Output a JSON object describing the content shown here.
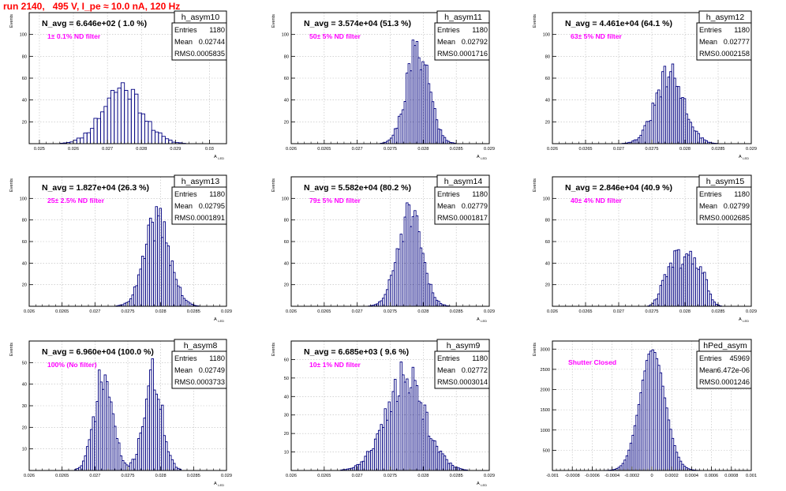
{
  "page": {
    "title": "run 2140,   495 V, I_pe ≈ 10.0 nA, 120 Hz"
  },
  "colors": {
    "hist": "#000080",
    "filter_text": "#ff00ff",
    "title": "#ff0000",
    "grid": "#bbbbbb"
  },
  "chart_data": [
    {
      "type": "histogram",
      "name": "h_asym10",
      "ylabel": "Events",
      "xlabel": "A_LED",
      "navg": "N_avg = 6.646e+02 ( 1.0 %)",
      "filter": "1± 0.1% ND filter",
      "stats": {
        "entries": "1180",
        "mean": "0.02744",
        "rms": "0.0005835"
      },
      "xlim": [
        0.0247,
        0.0305
      ],
      "ylim": [
        0,
        120
      ],
      "xticks": [
        "0.025",
        "0.026",
        "0.027",
        "0.028",
        "0.029",
        "0.03"
      ],
      "xtick_values": [
        0.025,
        0.026,
        0.027,
        0.028,
        0.029,
        0.03
      ],
      "yticks": [
        "20",
        "40",
        "60",
        "80",
        "100"
      ],
      "ytick_values": [
        20,
        40,
        60,
        80,
        100
      ],
      "profile": {
        "type": "gauss",
        "mean": 0.02744,
        "sigma": 0.00058,
        "peak": 52,
        "bin": 0.0001,
        "seed": 11
      }
    },
    {
      "type": "histogram",
      "name": "h_asym11",
      "ylabel": "Events",
      "xlabel": "A_LED",
      "navg": "N_avg = 3.574e+04 (51.3 %)",
      "filter": "50± 5% ND filter",
      "stats": {
        "entries": "1180",
        "mean": "0.02792",
        "rms": "0.0001716"
      },
      "xlim": [
        0.026,
        0.029
      ],
      "ylim": [
        0,
        120
      ],
      "xticks": [
        "0.026",
        "0.0265",
        "0.027",
        "0.0275",
        "0.028",
        "0.0285",
        "0.029"
      ],
      "xtick_values": [
        0.026,
        0.0265,
        0.027,
        0.0275,
        0.028,
        0.0285,
        0.029
      ],
      "yticks": [
        "20",
        "40",
        "60",
        "80",
        "100"
      ],
      "ytick_values": [
        20,
        40,
        60,
        80,
        100
      ],
      "profile": {
        "type": "gauss",
        "mean": 0.02792,
        "sigma": 0.000172,
        "peak": 88,
        "bin": 3e-05,
        "seed": 21
      }
    },
    {
      "type": "histogram",
      "name": "h_asym12",
      "ylabel": "Events",
      "xlabel": "A_LED",
      "navg": "N_avg = 4.461e+04 (64.1 %)",
      "filter": "63± 5% ND filter",
      "stats": {
        "entries": "1180",
        "mean": "0.02777",
        "rms": "0.0002158"
      },
      "xlim": [
        0.026,
        0.029
      ],
      "ylim": [
        0,
        120
      ],
      "xticks": [
        "0.026",
        "0.0265",
        "0.027",
        "0.0275",
        "0.028",
        "0.0285",
        "0.029"
      ],
      "xtick_values": [
        0.026,
        0.0265,
        0.027,
        0.0275,
        0.028,
        0.0285,
        0.029
      ],
      "yticks": [
        "20",
        "40",
        "60",
        "80",
        "100"
      ],
      "ytick_values": [
        20,
        40,
        60,
        80,
        100
      ],
      "profile": {
        "type": "gauss",
        "mean": 0.02777,
        "sigma": 0.000216,
        "peak": 62,
        "bin": 3e-05,
        "seed": 31
      }
    },
    {
      "type": "histogram",
      "name": "h_asym13",
      "ylabel": "Events",
      "xlabel": "A_LED",
      "navg": "N_avg = 1.827e+04 (26.3 %)",
      "filter": "25± 2.5% ND filter",
      "stats": {
        "entries": "1180",
        "mean": "0.02795",
        "rms": "0.0001891"
      },
      "xlim": [
        0.026,
        0.029
      ],
      "ylim": [
        0,
        120
      ],
      "xticks": [
        "0.026",
        "0.0265",
        "0.027",
        "0.0275",
        "0.028",
        "0.0285",
        "0.029"
      ],
      "xtick_values": [
        0.026,
        0.0265,
        0.027,
        0.0275,
        0.028,
        0.0285,
        0.029
      ],
      "yticks": [
        "20",
        "40",
        "60",
        "80",
        "100"
      ],
      "ytick_values": [
        20,
        40,
        60,
        80,
        100
      ],
      "profile": {
        "type": "gauss",
        "mean": 0.02795,
        "sigma": 0.000189,
        "peak": 80,
        "bin": 3e-05,
        "seed": 41
      }
    },
    {
      "type": "histogram",
      "name": "h_asym14",
      "ylabel": "Events",
      "xlabel": "A_LED",
      "navg": "N_avg = 5.582e+04 (80.2 %)",
      "filter": "79± 5% ND filter",
      "stats": {
        "entries": "1180",
        "mean": "0.02779",
        "rms": "0.0001817"
      },
      "xlim": [
        0.026,
        0.029
      ],
      "ylim": [
        0,
        120
      ],
      "xticks": [
        "0.026",
        "0.0265",
        "0.027",
        "0.0275",
        "0.028",
        "0.0285",
        "0.029"
      ],
      "xtick_values": [
        0.026,
        0.0265,
        0.027,
        0.0275,
        0.028,
        0.0285,
        0.029
      ],
      "yticks": [
        "20",
        "40",
        "60",
        "80",
        "100"
      ],
      "ytick_values": [
        20,
        40,
        60,
        80,
        100
      ],
      "profile": {
        "type": "gauss",
        "mean": 0.02779,
        "sigma": 0.000182,
        "peak": 84,
        "bin": 3e-05,
        "seed": 51
      }
    },
    {
      "type": "histogram",
      "name": "h_asym15",
      "ylabel": "Events",
      "xlabel": "A_LED",
      "navg": "N_avg = 2.846e+04 (40.9 %)",
      "filter": "40± 4% ND filter",
      "stats": {
        "entries": "1180",
        "mean": "0.02799",
        "rms": "0.0002685"
      },
      "xlim": [
        0.026,
        0.029
      ],
      "ylim": [
        0,
        120
      ],
      "xticks": [
        "0.026",
        "0.0265",
        "0.027",
        "0.0275",
        "0.028",
        "0.0285",
        "0.029"
      ],
      "xtick_values": [
        0.026,
        0.0265,
        0.027,
        0.0275,
        0.028,
        0.0285,
        0.029
      ],
      "yticks": [
        "20",
        "40",
        "60",
        "80",
        "100"
      ],
      "ytick_values": [
        20,
        40,
        60,
        80,
        100
      ],
      "profile": {
        "type": "flat",
        "mean": 0.02799,
        "sigma": 0.000268,
        "peak": 44,
        "bin": 3e-05,
        "seed": 61
      }
    },
    {
      "type": "histogram",
      "name": "h_asym8",
      "ylabel": "Events",
      "xlabel": "A_LED",
      "navg": "N_avg = 6.960e+04 (100.0 %)",
      "filter": "100% (No filter)",
      "stats": {
        "entries": "1180",
        "mean": "0.02749",
        "rms": "0.0003733"
      },
      "xlim": [
        0.026,
        0.029
      ],
      "ylim": [
        0,
        60
      ],
      "xticks": [
        "0.026",
        "0.0265",
        "0.027",
        "0.0275",
        "0.028",
        "0.0285",
        "0.029"
      ],
      "xtick_values": [
        0.026,
        0.0265,
        0.027,
        0.0275,
        0.028,
        0.0285,
        0.029
      ],
      "yticks": [
        "10",
        "20",
        "30",
        "40",
        "50"
      ],
      "ytick_values": [
        10,
        20,
        30,
        40,
        50
      ],
      "profile": {
        "type": "double",
        "mean": 0.02713,
        "mean2": 0.02788,
        "sigma": 0.00014,
        "peak": 43,
        "bin": 3e-05,
        "seed": 71
      }
    },
    {
      "type": "histogram",
      "name": "h_asym9",
      "ylabel": "Events",
      "xlabel": "A_LED",
      "navg": "N_avg = 6.685e+03 ( 9.6 %)",
      "filter": "10± 1% ND filter",
      "stats": {
        "entries": "1180",
        "mean": "0.02772",
        "rms": "0.0003014"
      },
      "xlim": [
        0.026,
        0.029
      ],
      "ylim": [
        0,
        70
      ],
      "xticks": [
        "0.026",
        "0.0265",
        "0.027",
        "0.0275",
        "0.028",
        "0.0285",
        "0.029"
      ],
      "xtick_values": [
        0.026,
        0.0265,
        0.027,
        0.0275,
        0.028,
        0.0285,
        0.029
      ],
      "yticks": [
        "10",
        "20",
        "30",
        "40",
        "50",
        "60"
      ],
      "ytick_values": [
        10,
        20,
        30,
        40,
        50,
        60
      ],
      "profile": {
        "type": "gauss",
        "mean": 0.02772,
        "sigma": 0.0003,
        "peak": 50,
        "bin": 3e-05,
        "seed": 81
      }
    },
    {
      "type": "histogram",
      "name": "hPed_asym",
      "ylabel": "Events",
      "xlabel": "",
      "navg": "",
      "filter": "Shutter Closed",
      "stats": {
        "entries": "45969",
        "mean": "6.472e-06",
        "rms": "0.0001246"
      },
      "xlim": [
        -0.001,
        0.001
      ],
      "ylim": [
        0,
        3200
      ],
      "xticks": [
        "-0.001",
        "-0.0008",
        "-0.0006",
        "-0.0004",
        "-0.0002",
        "0",
        "0.0002",
        "0.0004",
        "0.0006",
        "0.0008",
        "0.001"
      ],
      "xtick_values": [
        -0.001,
        -0.0008,
        -0.0006,
        -0.0004,
        -0.0002,
        0,
        0.0002,
        0.0004,
        0.0006,
        0.0008,
        0.001
      ],
      "yticks": [
        "500",
        "1000",
        "1500",
        "2000",
        "2500",
        "3000"
      ],
      "ytick_values": [
        500,
        1000,
        1500,
        2000,
        2500,
        3000
      ],
      "profile": {
        "type": "gauss",
        "mean": 6.5e-06,
        "sigma": 0.000125,
        "peak": 2980,
        "bin": 2e-05,
        "seed": 91,
        "noise": 0.02
      }
    }
  ]
}
